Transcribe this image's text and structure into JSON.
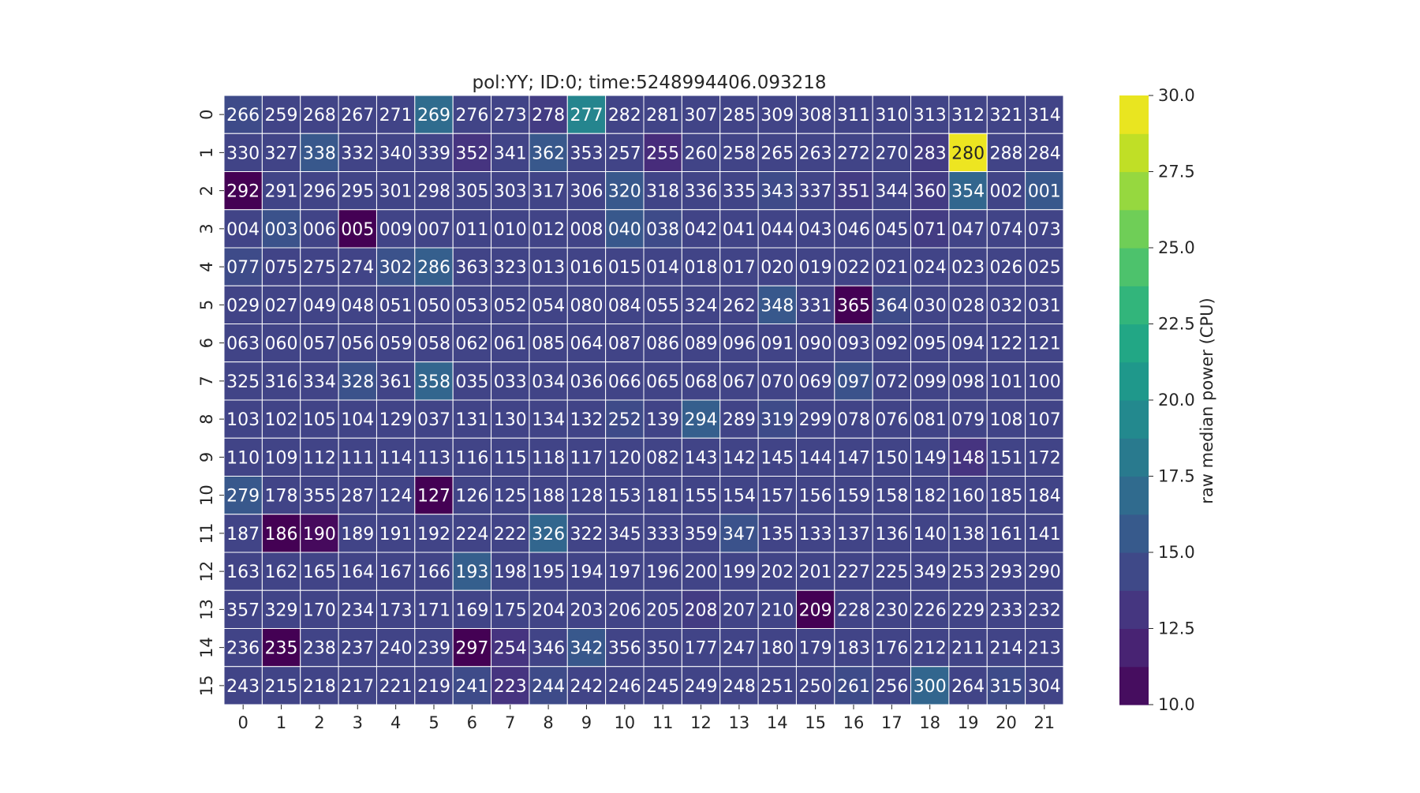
{
  "chart_data": {
    "type": "heatmap",
    "title": "pol:YY; ID:0; time:5248994406.093218",
    "x_tick_labels": [
      "0",
      "1",
      "2",
      "3",
      "4",
      "5",
      "6",
      "7",
      "8",
      "9",
      "10",
      "11",
      "12",
      "13",
      "14",
      "15",
      "16",
      "17",
      "18",
      "19",
      "20",
      "21"
    ],
    "y_tick_labels": [
      "0",
      "1",
      "2",
      "3",
      "4",
      "5",
      "6",
      "7",
      "8",
      "9",
      "10",
      "11",
      "12",
      "13",
      "14",
      "15"
    ],
    "annotations": [
      [
        "266",
        "259",
        "268",
        "267",
        "271",
        "269",
        "276",
        "273",
        "278",
        "277",
        "282",
        "281",
        "307",
        "285",
        "309",
        "308",
        "311",
        "310",
        "313",
        "312",
        "321",
        "314"
      ],
      [
        "330",
        "327",
        "338",
        "332",
        "340",
        "339",
        "352",
        "341",
        "362",
        "353",
        "257",
        "255",
        "260",
        "258",
        "265",
        "263",
        "272",
        "270",
        "283",
        "280",
        "288",
        "284"
      ],
      [
        "292",
        "291",
        "296",
        "295",
        "301",
        "298",
        "305",
        "303",
        "317",
        "306",
        "320",
        "318",
        "336",
        "335",
        "343",
        "337",
        "351",
        "344",
        "360",
        "354",
        "002",
        "001"
      ],
      [
        "004",
        "003",
        "006",
        "005",
        "009",
        "007",
        "011",
        "010",
        "012",
        "008",
        "040",
        "038",
        "042",
        "041",
        "044",
        "043",
        "046",
        "045",
        "071",
        "047",
        "074",
        "073"
      ],
      [
        "077",
        "075",
        "275",
        "274",
        "302",
        "286",
        "363",
        "323",
        "013",
        "016",
        "015",
        "014",
        "018",
        "017",
        "020",
        "019",
        "022",
        "021",
        "024",
        "023",
        "026",
        "025"
      ],
      [
        "029",
        "027",
        "049",
        "048",
        "051",
        "050",
        "053",
        "052",
        "054",
        "080",
        "084",
        "055",
        "324",
        "262",
        "348",
        "331",
        "365",
        "364",
        "030",
        "028",
        "032",
        "031"
      ],
      [
        "063",
        "060",
        "057",
        "056",
        "059",
        "058",
        "062",
        "061",
        "085",
        "064",
        "087",
        "086",
        "089",
        "096",
        "091",
        "090",
        "093",
        "092",
        "095",
        "094",
        "122",
        "121"
      ],
      [
        "325",
        "316",
        "334",
        "328",
        "361",
        "358",
        "035",
        "033",
        "034",
        "036",
        "066",
        "065",
        "068",
        "067",
        "070",
        "069",
        "097",
        "072",
        "099",
        "098",
        "101",
        "100"
      ],
      [
        "103",
        "102",
        "105",
        "104",
        "129",
        "037",
        "131",
        "130",
        "134",
        "132",
        "252",
        "139",
        "294",
        "289",
        "319",
        "299",
        "078",
        "076",
        "081",
        "079",
        "108",
        "107"
      ],
      [
        "110",
        "109",
        "112",
        "111",
        "114",
        "113",
        "116",
        "115",
        "118",
        "117",
        "120",
        "082",
        "143",
        "142",
        "145",
        "144",
        "147",
        "150",
        "149",
        "148",
        "151",
        "172"
      ],
      [
        "279",
        "178",
        "355",
        "287",
        "124",
        "127",
        "126",
        "125",
        "188",
        "128",
        "153",
        "181",
        "155",
        "154",
        "157",
        "156",
        "159",
        "158",
        "182",
        "160",
        "185",
        "184"
      ],
      [
        "187",
        "186",
        "190",
        "189",
        "191",
        "192",
        "224",
        "222",
        "326",
        "322",
        "345",
        "333",
        "359",
        "347",
        "135",
        "133",
        "137",
        "136",
        "140",
        "138",
        "161",
        "141"
      ],
      [
        "163",
        "162",
        "165",
        "164",
        "167",
        "166",
        "193",
        "198",
        "195",
        "194",
        "197",
        "196",
        "200",
        "199",
        "202",
        "201",
        "227",
        "225",
        "349",
        "253",
        "293",
        "290"
      ],
      [
        "357",
        "329",
        "170",
        "234",
        "173",
        "171",
        "169",
        "175",
        "204",
        "203",
        "206",
        "205",
        "208",
        "207",
        "210",
        "209",
        "228",
        "230",
        "226",
        "229",
        "233",
        "232"
      ],
      [
        "236",
        "235",
        "238",
        "237",
        "240",
        "239",
        "297",
        "254",
        "346",
        "342",
        "356",
        "350",
        "177",
        "247",
        "180",
        "179",
        "183",
        "176",
        "212",
        "211",
        "214",
        "213"
      ],
      [
        "243",
        "215",
        "218",
        "217",
        "221",
        "219",
        "241",
        "223",
        "244",
        "242",
        "246",
        "245",
        "249",
        "248",
        "251",
        "250",
        "261",
        "256",
        "300",
        "264",
        "315",
        "304"
      ]
    ],
    "values": [
      [
        14.5,
        14.0,
        14.0,
        14.0,
        14.0,
        17.0,
        14.0,
        14.0,
        13.5,
        19.0,
        14.0,
        14.0,
        14.0,
        14.0,
        14.0,
        14.0,
        14.0,
        14.0,
        14.0,
        14.0,
        14.0,
        14.0
      ],
      [
        14.0,
        14.0,
        15.5,
        14.0,
        14.0,
        14.0,
        13.0,
        14.0,
        15.5,
        14.0,
        14.0,
        12.5,
        14.0,
        14.0,
        14.0,
        14.0,
        14.0,
        14.0,
        13.5,
        29.5,
        14.0,
        14.0
      ],
      [
        10.0,
        14.0,
        14.0,
        14.0,
        14.0,
        14.0,
        14.0,
        14.0,
        14.0,
        14.0,
        15.5,
        14.0,
        14.0,
        14.0,
        14.5,
        14.0,
        13.5,
        14.0,
        13.5,
        16.5,
        14.0,
        15.5
      ],
      [
        14.0,
        15.0,
        14.0,
        10.0,
        14.0,
        14.0,
        14.0,
        14.0,
        14.0,
        14.0,
        15.5,
        14.5,
        14.0,
        14.0,
        14.0,
        14.0,
        14.0,
        14.0,
        13.5,
        14.0,
        14.0,
        14.0
      ],
      [
        14.5,
        14.0,
        14.0,
        14.0,
        15.0,
        16.0,
        14.0,
        14.0,
        14.0,
        14.0,
        14.0,
        14.0,
        14.0,
        14.0,
        14.0,
        14.0,
        14.0,
        14.0,
        14.0,
        14.0,
        14.0,
        14.0
      ],
      [
        14.0,
        14.0,
        14.0,
        14.0,
        14.0,
        14.0,
        14.0,
        14.0,
        14.0,
        14.0,
        14.0,
        14.0,
        14.0,
        14.0,
        15.5,
        14.0,
        10.0,
        14.5,
        14.0,
        14.0,
        14.0,
        14.0
      ],
      [
        14.0,
        14.0,
        14.0,
        14.0,
        14.0,
        14.0,
        14.0,
        14.0,
        14.0,
        14.0,
        14.0,
        14.0,
        14.0,
        14.0,
        14.0,
        14.0,
        14.0,
        14.0,
        14.0,
        14.0,
        14.0,
        14.0
      ],
      [
        14.0,
        14.0,
        14.0,
        15.0,
        14.0,
        16.5,
        14.0,
        14.0,
        14.0,
        14.0,
        14.0,
        14.0,
        14.0,
        14.0,
        14.0,
        14.0,
        15.0,
        14.0,
        14.0,
        14.0,
        14.0,
        14.0
      ],
      [
        14.0,
        14.0,
        14.0,
        14.0,
        14.0,
        14.0,
        14.0,
        14.0,
        14.0,
        14.0,
        14.5,
        14.0,
        16.0,
        14.0,
        14.5,
        14.0,
        14.0,
        14.0,
        14.0,
        14.0,
        14.0,
        14.0
      ],
      [
        14.0,
        14.0,
        14.0,
        14.0,
        14.0,
        14.0,
        14.0,
        14.0,
        14.0,
        14.0,
        14.0,
        14.0,
        14.0,
        14.0,
        14.0,
        14.0,
        14.0,
        14.0,
        14.0,
        13.0,
        14.0,
        14.0
      ],
      [
        15.5,
        14.0,
        14.0,
        14.0,
        14.0,
        10.0,
        14.0,
        14.0,
        14.0,
        14.0,
        14.0,
        14.0,
        14.0,
        14.0,
        14.0,
        14.0,
        14.0,
        14.0,
        14.0,
        14.0,
        14.0,
        14.0
      ],
      [
        14.0,
        10.0,
        10.5,
        14.0,
        14.0,
        14.0,
        14.0,
        14.0,
        16.5,
        14.0,
        14.0,
        14.0,
        14.0,
        15.0,
        14.0,
        14.0,
        14.0,
        14.0,
        14.0,
        14.0,
        14.0,
        14.0
      ],
      [
        14.0,
        14.0,
        14.0,
        14.0,
        14.0,
        14.0,
        16.0,
        14.0,
        14.0,
        14.0,
        14.0,
        14.0,
        14.0,
        14.0,
        14.0,
        14.0,
        14.0,
        14.0,
        14.0,
        14.0,
        14.0,
        14.0
      ],
      [
        14.0,
        14.0,
        14.0,
        14.0,
        14.0,
        14.0,
        14.0,
        14.0,
        14.0,
        14.0,
        14.0,
        14.0,
        13.5,
        14.0,
        14.0,
        10.0,
        14.0,
        14.0,
        14.0,
        14.0,
        14.0,
        14.0
      ],
      [
        14.0,
        10.0,
        14.0,
        14.0,
        14.0,
        14.0,
        10.0,
        13.0,
        14.0,
        15.5,
        14.0,
        14.0,
        14.0,
        14.0,
        14.0,
        14.0,
        14.0,
        14.0,
        14.0,
        14.0,
        14.0,
        14.0
      ],
      [
        14.0,
        14.0,
        14.0,
        14.0,
        14.0,
        14.0,
        14.5,
        13.0,
        14.5,
        14.0,
        14.0,
        14.0,
        14.0,
        14.0,
        14.0,
        14.0,
        14.5,
        14.0,
        16.5,
        14.0,
        14.5,
        14.0
      ]
    ],
    "colorbar": {
      "label": "raw median power (CPU)",
      "range": [
        10.0,
        30.0
      ],
      "ticks": [
        "10.0",
        "12.5",
        "15.0",
        "17.5",
        "20.0",
        "22.5",
        "25.0",
        "27.5",
        "30.0"
      ],
      "colormap": "viridis"
    }
  }
}
